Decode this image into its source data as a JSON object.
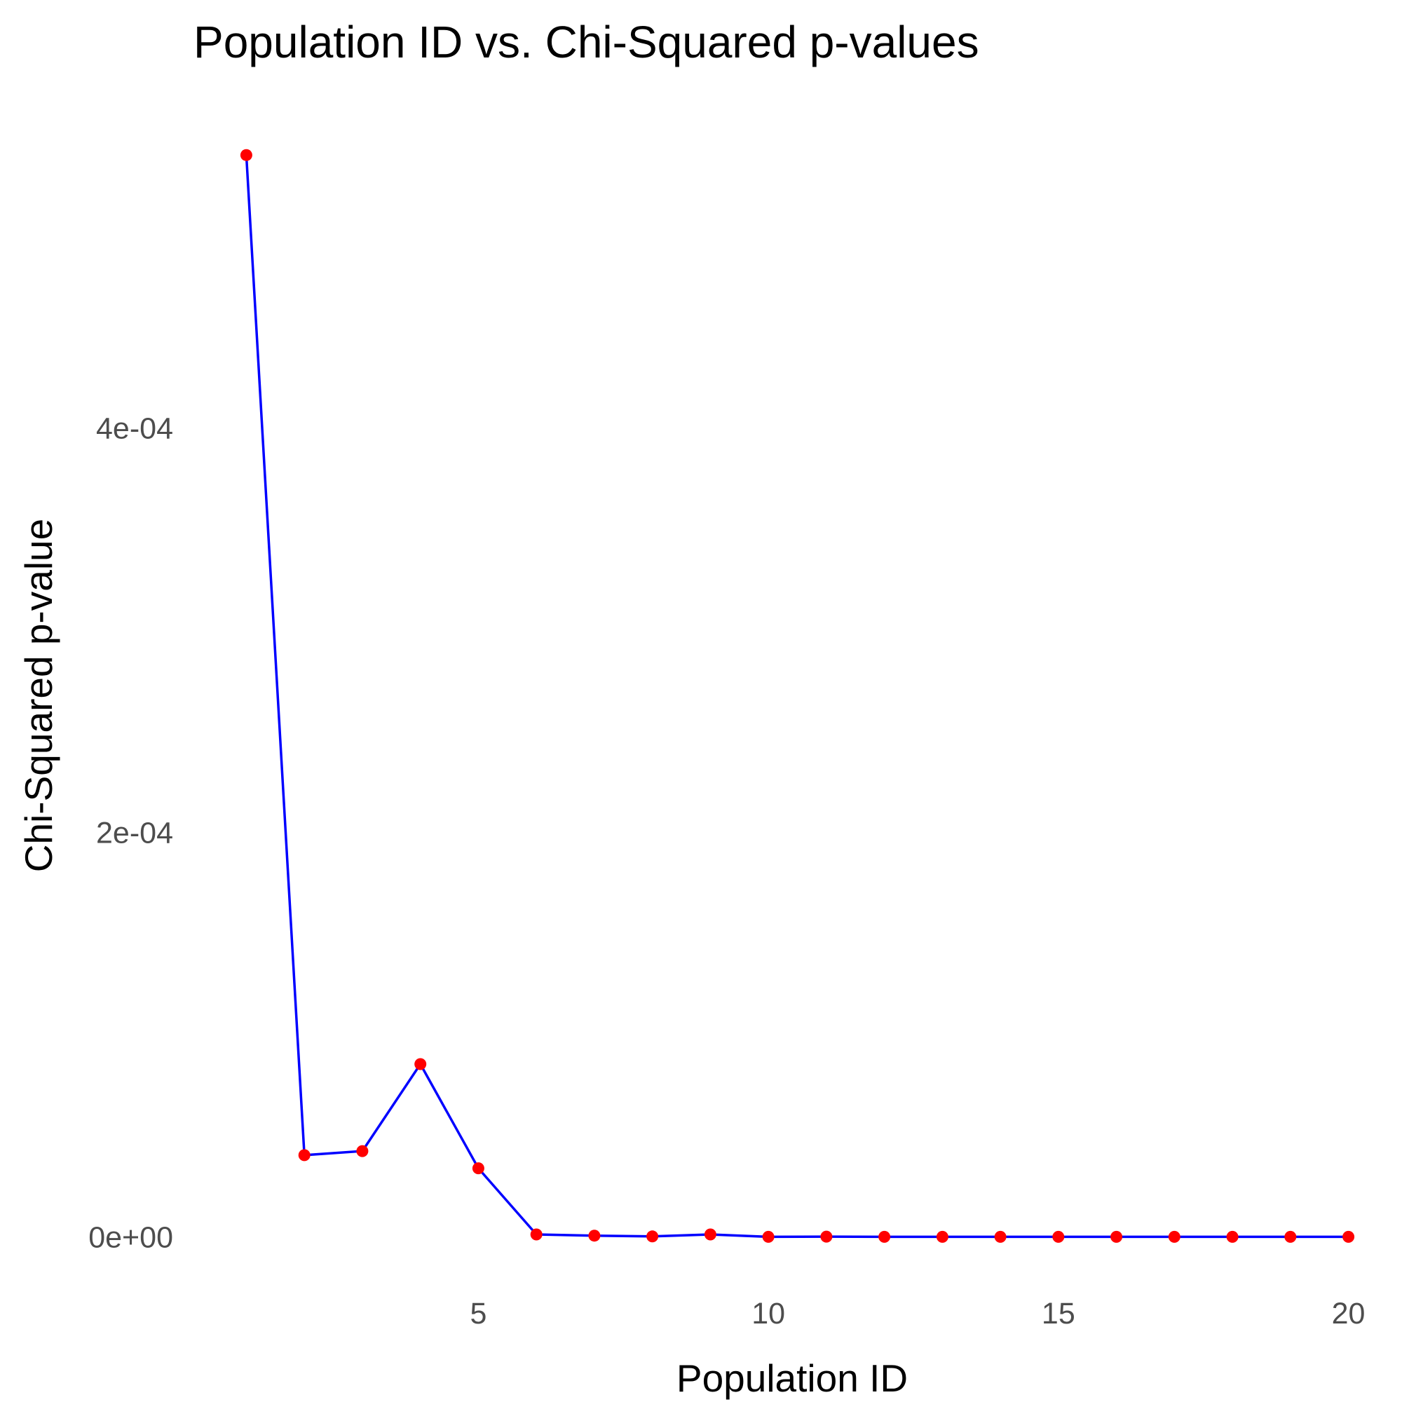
{
  "chart_data": {
    "type": "line",
    "title": "Population ID vs. Chi-Squared p-values",
    "xlabel": "Population ID",
    "ylabel": "Chi-Squared p-value",
    "xlim": [
      0.62,
      20.38
    ],
    "ylim": [
      -1.57e-05,
      0.000551
    ],
    "x_ticks": [
      5,
      10,
      15,
      20
    ],
    "x_tick_labels": [
      "5",
      "10",
      "15",
      "20"
    ],
    "y_ticks": [
      0,
      0.0002,
      0.0004
    ],
    "y_tick_labels": [
      "0e+00",
      "2e-04",
      "4e-04"
    ],
    "grid": false,
    "legend": "none",
    "series": [
      {
        "x": [
          1,
          2,
          3,
          4,
          5,
          6,
          7,
          8,
          9,
          10,
          11,
          12,
          13,
          14,
          15,
          16,
          17,
          18,
          19,
          20
        ],
        "y": [
          0.000535,
          4.05e-05,
          4.25e-05,
          8.55e-05,
          3.4e-05,
          1.3e-06,
          7e-07,
          3e-07,
          1.3e-06,
          1e-07,
          2e-07,
          1e-07,
          1e-07,
          1e-07,
          1e-07,
          1e-07,
          1e-07,
          1e-07,
          1e-07,
          1e-07
        ],
        "line_color": "#0000ff",
        "point_color": "#ff0000"
      }
    ]
  }
}
